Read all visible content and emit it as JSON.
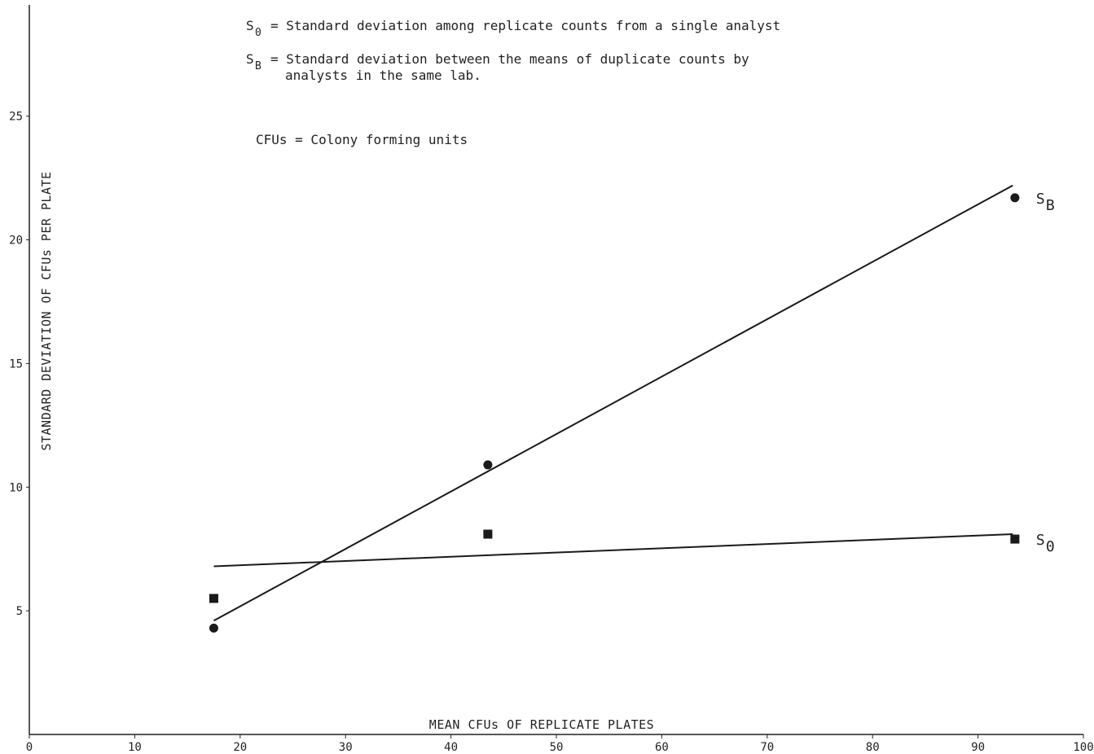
{
  "chart_data": {
    "type": "scatter",
    "xlabel": "MEAN CFUs OF REPLICATE PLATES",
    "ylabel": "STANDARD DEVIATION OF CFUs PER PLATE",
    "xlim": [
      0,
      100
    ],
    "ylim": [
      0,
      29.5
    ],
    "xticks": [
      "0",
      "10",
      "20",
      "30",
      "40",
      "50",
      "60",
      "70",
      "80",
      "90",
      "100"
    ],
    "yticks": [
      "5",
      "10",
      "15",
      "20",
      "25"
    ],
    "grid": false,
    "legend_text": [
      {
        "symbol": "S",
        "subscript": "0",
        "text": "= Standard deviation among replicate counts from a single analyst"
      },
      {
        "symbol": "S",
        "subscript": "B",
        "text": "= Standard deviation between the means of duplicate counts by",
        "continuation": "analysts in the same lab."
      },
      {
        "symbol": "",
        "subscript": "",
        "text": "CFUs = Colony forming units"
      }
    ],
    "series": [
      {
        "name": "SB",
        "label_symbol": "S",
        "label_subscript": "B",
        "marker": "circle",
        "points": [
          [
            17.5,
            4.3
          ],
          [
            43.5,
            10.9
          ],
          [
            93.5,
            21.7
          ]
        ],
        "fit_line": [
          [
            17.5,
            4.6
          ],
          [
            93.3,
            22.2
          ]
        ]
      },
      {
        "name": "S0",
        "label_symbol": "S",
        "label_subscript": "0",
        "marker": "square",
        "points": [
          [
            17.5,
            5.5
          ],
          [
            43.5,
            8.1
          ],
          [
            93.5,
            7.9
          ]
        ],
        "fit_line": [
          [
            17.5,
            6.8
          ],
          [
            93.3,
            8.1
          ]
        ]
      }
    ]
  }
}
